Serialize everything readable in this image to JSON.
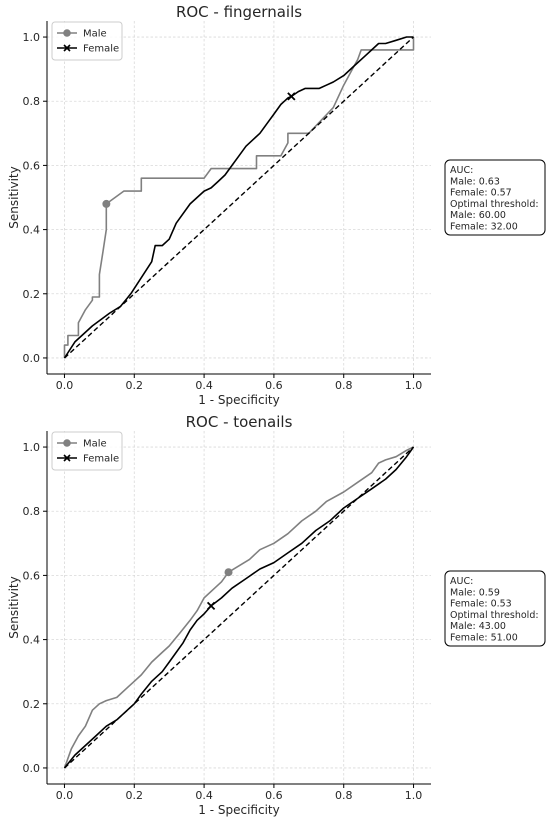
{
  "chart_data": [
    {
      "type": "line",
      "title": "ROC - fingernails",
      "xlabel": "1 - Specificity",
      "ylabel": "Sensitivity",
      "xlim": [
        -0.05,
        1.05
      ],
      "ylim": [
        -0.05,
        1.05
      ],
      "xticks": [
        "0.0",
        "0.2",
        "0.4",
        "0.6",
        "0.8",
        "1.0"
      ],
      "yticks": [
        "0.0",
        "0.2",
        "0.4",
        "0.6",
        "0.8",
        "1.0"
      ],
      "grid": true,
      "legend_position": "top-left",
      "series": [
        {
          "name": "Male",
          "color": "#808080",
          "marker": "circle",
          "optimal_point": [
            0.12,
            0.48
          ],
          "x": [
            0,
            0,
            0.01,
            0.01,
            0.04,
            0.04,
            0.06,
            0.08,
            0.08,
            0.1,
            0.1,
            0.11,
            0.12,
            0.12,
            0.17,
            0.22,
            0.22,
            0.4,
            0.42,
            0.42,
            0.55,
            0.55,
            0.62,
            0.64,
            0.64,
            0.7,
            0.77,
            0.8,
            0.8,
            0.82,
            0.84,
            0.85,
            0.85,
            0.88,
            0.92,
            1.0,
            1.0
          ],
          "y": [
            0,
            0.04,
            0.04,
            0.07,
            0.07,
            0.11,
            0.15,
            0.18,
            0.19,
            0.19,
            0.26,
            0.33,
            0.4,
            0.48,
            0.52,
            0.52,
            0.56,
            0.56,
            0.59,
            0.59,
            0.59,
            0.63,
            0.63,
            0.67,
            0.7,
            0.7,
            0.78,
            0.85,
            0.85,
            0.89,
            0.93,
            0.96,
            0.96,
            0.96,
            0.96,
            0.96,
            1.0
          ]
        },
        {
          "name": "Female",
          "color": "#000000",
          "marker": "x",
          "optimal_point": [
            0.65,
            0.815
          ],
          "x": [
            0,
            0.03,
            0.08,
            0.13,
            0.16,
            0.19,
            0.22,
            0.25,
            0.26,
            0.28,
            0.3,
            0.32,
            0.36,
            0.38,
            0.4,
            0.42,
            0.44,
            0.46,
            0.48,
            0.5,
            0.52,
            0.54,
            0.56,
            0.58,
            0.6,
            0.62,
            0.63,
            0.64,
            0.65,
            0.67,
            0.69,
            0.71,
            0.73,
            0.75,
            0.77,
            0.8,
            0.83,
            0.86,
            0.88,
            0.9,
            0.92,
            0.95,
            0.98,
            1.0
          ],
          "y": [
            0,
            0.05,
            0.1,
            0.14,
            0.16,
            0.2,
            0.25,
            0.3,
            0.35,
            0.35,
            0.37,
            0.42,
            0.48,
            0.5,
            0.52,
            0.53,
            0.55,
            0.57,
            0.6,
            0.63,
            0.66,
            0.68,
            0.7,
            0.73,
            0.76,
            0.79,
            0.8,
            0.81,
            0.815,
            0.83,
            0.84,
            0.84,
            0.84,
            0.85,
            0.86,
            0.88,
            0.91,
            0.94,
            0.96,
            0.98,
            0.98,
            0.99,
            1.0,
            1.0
          ]
        },
        {
          "name": "",
          "color": "#000000",
          "style": "dashed",
          "x": [
            0,
            1
          ],
          "y": [
            0,
            1
          ]
        }
      ],
      "annotation": {
        "lines": [
          "AUC:",
          "Male: 0.63",
          "Female: 0.57",
          "Optimal threshold:",
          "Male: 60.00",
          "Female: 32.00"
        ]
      }
    },
    {
      "type": "line",
      "title": "ROC - toenails",
      "xlabel": "1 - Specificity",
      "ylabel": "Sensitivity",
      "xlim": [
        -0.05,
        1.05
      ],
      "ylim": [
        -0.05,
        1.05
      ],
      "xticks": [
        "0.0",
        "0.2",
        "0.4",
        "0.6",
        "0.8",
        "1.0"
      ],
      "yticks": [
        "0.0",
        "0.2",
        "0.4",
        "0.6",
        "0.8",
        "1.0"
      ],
      "grid": true,
      "legend_position": "top-left",
      "series": [
        {
          "name": "Male",
          "color": "#808080",
          "marker": "circle",
          "optimal_point": [
            0.47,
            0.61
          ],
          "x": [
            0,
            0.02,
            0.04,
            0.06,
            0.08,
            0.1,
            0.12,
            0.15,
            0.18,
            0.2,
            0.22,
            0.25,
            0.28,
            0.3,
            0.33,
            0.36,
            0.38,
            0.4,
            0.43,
            0.45,
            0.47,
            0.5,
            0.53,
            0.56,
            0.6,
            0.64,
            0.68,
            0.72,
            0.75,
            0.8,
            0.84,
            0.88,
            0.9,
            0.92,
            0.95,
            0.98,
            1.0
          ],
          "y": [
            0,
            0.06,
            0.1,
            0.13,
            0.18,
            0.2,
            0.21,
            0.22,
            0.25,
            0.27,
            0.29,
            0.33,
            0.36,
            0.38,
            0.42,
            0.46,
            0.49,
            0.53,
            0.56,
            0.58,
            0.61,
            0.63,
            0.65,
            0.68,
            0.7,
            0.73,
            0.77,
            0.8,
            0.83,
            0.86,
            0.89,
            0.92,
            0.95,
            0.96,
            0.97,
            0.99,
            1.0
          ]
        },
        {
          "name": "Female",
          "color": "#000000",
          "marker": "x",
          "optimal_point": [
            0.42,
            0.505
          ],
          "x": [
            0,
            0.03,
            0.06,
            0.09,
            0.12,
            0.15,
            0.18,
            0.2,
            0.22,
            0.25,
            0.28,
            0.3,
            0.32,
            0.34,
            0.36,
            0.38,
            0.4,
            0.42,
            0.45,
            0.48,
            0.52,
            0.56,
            0.6,
            0.64,
            0.68,
            0.72,
            0.76,
            0.8,
            0.84,
            0.88,
            0.92,
            0.95,
            0.98,
            1.0
          ],
          "y": [
            0,
            0.04,
            0.07,
            0.1,
            0.13,
            0.15,
            0.18,
            0.2,
            0.23,
            0.27,
            0.3,
            0.33,
            0.36,
            0.39,
            0.43,
            0.46,
            0.48,
            0.505,
            0.53,
            0.56,
            0.59,
            0.62,
            0.64,
            0.67,
            0.7,
            0.74,
            0.77,
            0.81,
            0.84,
            0.87,
            0.9,
            0.93,
            0.97,
            1.0
          ]
        },
        {
          "name": "",
          "color": "#000000",
          "style": "dashed",
          "x": [
            0,
            1
          ],
          "y": [
            0,
            1
          ]
        }
      ],
      "annotation": {
        "lines": [
          "AUC:",
          "Male: 0.59",
          "Female: 0.53",
          "Optimal threshold:",
          "Male: 43.00",
          "Female: 51.00"
        ]
      }
    }
  ]
}
